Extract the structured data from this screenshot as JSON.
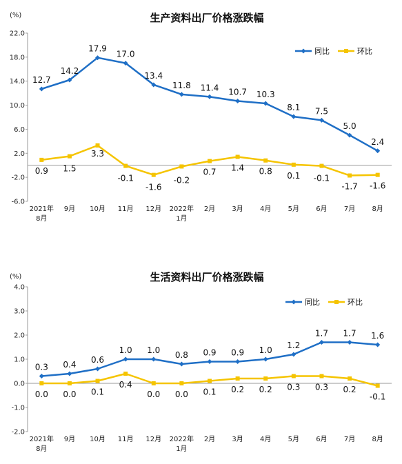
{
  "chart_data": [
    {
      "type": "line",
      "title": "生产资料出厂价格涨跌幅",
      "unit": "(%)",
      "categories": [
        "2021年\n8月",
        "9月",
        "10月",
        "11月",
        "12月",
        "2022年\n1月",
        "2月",
        "3月",
        "4月",
        "5月",
        "6月",
        "7月",
        "8月"
      ],
      "series": [
        {
          "name": "同比",
          "color": "#1f6fc6",
          "values": [
            12.7,
            14.2,
            17.9,
            17.0,
            13.4,
            11.8,
            11.4,
            10.7,
            10.3,
            8.1,
            7.5,
            5.0,
            2.4
          ]
        },
        {
          "name": "环比",
          "color": "#f5c400",
          "values": [
            0.9,
            1.5,
            3.3,
            -0.1,
            -1.6,
            -0.2,
            0.7,
            1.4,
            0.8,
            0.1,
            -0.1,
            -1.7,
            -1.6
          ]
        }
      ],
      "ylim": [
        -6.0,
        22.0
      ],
      "yticks": [
        "22.0",
        "18.0",
        "14.0",
        "10.0",
        "6.0",
        "2.0",
        "-2.0",
        "-6.0"
      ],
      "legend": "top-right",
      "grid": false
    },
    {
      "type": "line",
      "title": "生活资料出厂价格涨跌幅",
      "unit": "(%)",
      "categories": [
        "2021年\n8月",
        "9月",
        "10月",
        "11月",
        "12月",
        "2022年\n1月",
        "2月",
        "3月",
        "4月",
        "5月",
        "6月",
        "7月",
        "8月"
      ],
      "series": [
        {
          "name": "同比",
          "color": "#1f6fc6",
          "values": [
            0.3,
            0.4,
            0.6,
            1.0,
            1.0,
            0.8,
            0.9,
            0.9,
            1.0,
            1.2,
            1.7,
            1.7,
            1.6
          ]
        },
        {
          "name": "环比",
          "color": "#f5c400",
          "values": [
            0.0,
            0.0,
            0.1,
            0.4,
            0.0,
            0.0,
            0.1,
            0.2,
            0.2,
            0.3,
            0.3,
            0.2,
            -0.1
          ]
        }
      ],
      "ylim": [
        -2.0,
        4.0
      ],
      "yticks": [
        "4.0",
        "3.0",
        "2.0",
        "1.0",
        "0.0",
        "-1.0",
        "-2.0"
      ],
      "legend": "top-right",
      "grid": false
    }
  ]
}
